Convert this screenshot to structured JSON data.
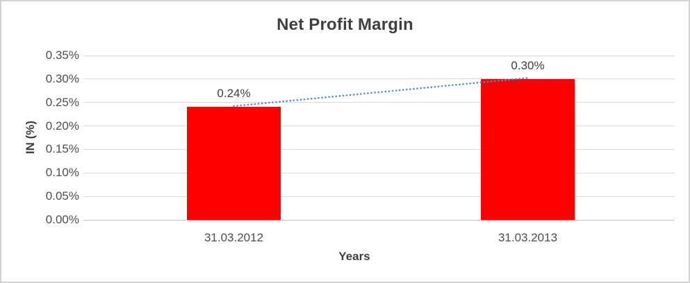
{
  "chart_data": {
    "type": "bar",
    "title": "Net Profit Margin",
    "xlabel": "Years",
    "ylabel": "IN (%)",
    "categories": [
      "31.03.2012",
      "31.03.2013"
    ],
    "values": [
      0.24,
      0.3
    ],
    "data_labels": [
      "0.24%",
      "0.30%"
    ],
    "y_ticks": [
      {
        "value": 0.35,
        "label": "0.35%"
      },
      {
        "value": 0.3,
        "label": "0.30%"
      },
      {
        "value": 0.25,
        "label": "0.25%"
      },
      {
        "value": 0.2,
        "label": "0.20%"
      },
      {
        "value": 0.15,
        "label": "0.15%"
      },
      {
        "value": 0.1,
        "label": "0.10%"
      },
      {
        "value": 0.05,
        "label": "0.05%"
      },
      {
        "value": 0.0,
        "label": "0.00%"
      }
    ],
    "ylim": [
      0,
      0.35
    ],
    "grid": true,
    "legend": "none",
    "bar_color": "#ff0000",
    "trendline": {
      "type": "linear",
      "style": "dotted",
      "color": "#4a8cd8",
      "from_value": 0.24,
      "to_value": 0.3
    },
    "colors": {
      "title": "#3f3f3f",
      "tick_label": "#4d4d4d",
      "gridline": "#d9d9d9",
      "axis_line": "#c6c6c6",
      "chart_border": "#d2d2d2",
      "background": "#ffffff"
    }
  }
}
